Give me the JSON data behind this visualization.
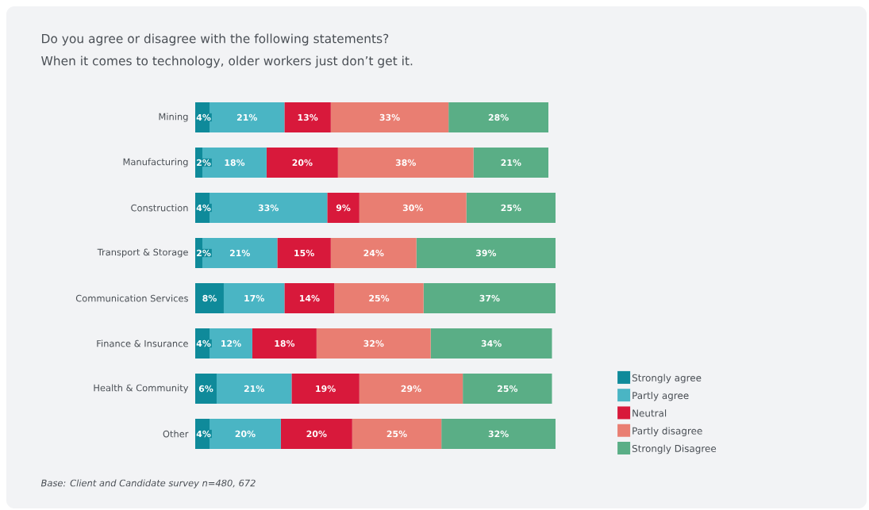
{
  "chart_data": {
    "type": "bar",
    "orientation": "horizontal",
    "stacked": true,
    "title": "Do you agree or disagree with the following statements?",
    "subtitle": "When it comes to technology, older workers just don’t get it.",
    "categories": [
      "Mining",
      "Manufacturing",
      "Construction",
      "Transport & Storage",
      "Communication Services",
      "Finance & Insurance",
      "Health & Community",
      "Other"
    ],
    "series": [
      {
        "name": "Strongly agree",
        "color": "#0f8a9a",
        "values": [
          4,
          2,
          4,
          2,
          8,
          4,
          6,
          4
        ],
        "value_labels": [
          "4%",
          "2%",
          "4%",
          "2%",
          "8%",
          "4%",
          "6%",
          "4%"
        ]
      },
      {
        "name": "Partly agree",
        "color": "#4ab5c4",
        "values": [
          21,
          18,
          33,
          21,
          17,
          12,
          21,
          20
        ],
        "value_labels": [
          "21%",
          "18%",
          "33%",
          "21%",
          "17%",
          "12%",
          "21%",
          "20%"
        ]
      },
      {
        "name": "Neutral",
        "color": "#d8193b",
        "values": [
          13,
          20,
          9,
          15,
          14,
          18,
          19,
          20
        ],
        "value_labels": [
          "13%",
          "20%",
          "9%",
          "15%",
          "14%",
          "18%",
          "19%",
          "20%"
        ]
      },
      {
        "name": "Partly disagree",
        "color": "#e97e72",
        "values": [
          33,
          38,
          30,
          24,
          25,
          32,
          29,
          25
        ],
        "value_labels": [
          "33%",
          "38%",
          "30%",
          "24%",
          "25%",
          "32%",
          "29%",
          "25%"
        ]
      },
      {
        "name": "Strongly Disagree",
        "color": "#5aae86",
        "values": [
          28,
          21,
          25,
          39,
          37,
          34,
          25,
          32
        ],
        "value_labels": [
          "28%",
          "21%",
          "25%",
          "39%",
          "37%",
          "34%",
          "25%",
          "32%"
        ]
      }
    ],
    "legend": "bottom right",
    "annotations": [
      "Base: Client and Candidate survey n=480, 672"
    ]
  }
}
